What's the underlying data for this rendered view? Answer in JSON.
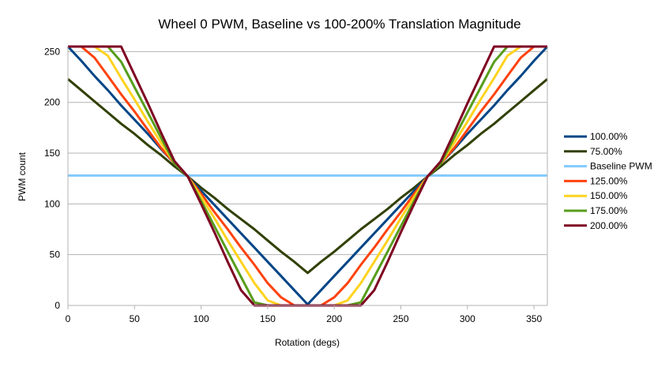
{
  "chart_data": {
    "type": "line",
    "title": "Wheel 0 PWM, Baseline vs 100-200% Translation Magnitude",
    "xlabel": "Rotation (degs)",
    "ylabel": "PWM count",
    "xlim": [
      0,
      360
    ],
    "ylim": [
      0,
      255
    ],
    "x_ticks": [
      0,
      50,
      100,
      150,
      200,
      250,
      300,
      350
    ],
    "y_ticks": [
      0,
      50,
      100,
      150,
      200,
      250
    ],
    "grid": "horizontal",
    "legend_position": "right",
    "x": [
      0,
      10,
      20,
      30,
      40,
      50,
      60,
      70,
      80,
      90,
      100,
      110,
      120,
      130,
      140,
      150,
      160,
      170,
      180,
      190,
      200,
      210,
      220,
      230,
      240,
      250,
      260,
      270,
      280,
      290,
      300,
      310,
      320,
      330,
      340,
      350,
      360
    ],
    "series": [
      {
        "name": "100.00%",
        "color": "#004586",
        "values": [
          255,
          241,
          226,
          212,
          197,
          183,
          169,
          154,
          140,
          127,
          113,
          99,
          85,
          71,
          57,
          43,
          29,
          15,
          1,
          15,
          29,
          43,
          57,
          71,
          85,
          99,
          113,
          127,
          140,
          154,
          169,
          183,
          197,
          212,
          226,
          241,
          255
        ]
      },
      {
        "name": "75.00%",
        "color": "#314004",
        "values": [
          223,
          212,
          201,
          190,
          179,
          169,
          158,
          148,
          137,
          127,
          116,
          106,
          95,
          85,
          75,
          64,
          53,
          43,
          32,
          43,
          53,
          64,
          75,
          85,
          95,
          106,
          116,
          127,
          137,
          148,
          158,
          169,
          179,
          190,
          201,
          212,
          223
        ]
      },
      {
        "name": "Baseline PWM",
        "color": "#83caff",
        "values": [
          128,
          128,
          128,
          128,
          128,
          128,
          128,
          128,
          128,
          128,
          128,
          128,
          128,
          128,
          128,
          128,
          128,
          128,
          128,
          128,
          128,
          128,
          128,
          128,
          128,
          128,
          128,
          128,
          128,
          128,
          128,
          128,
          128,
          128,
          128,
          128,
          128
        ]
      },
      {
        "name": "125.00%",
        "color": "#ff420e",
        "values": [
          255,
          255,
          244,
          226,
          208,
          191,
          173,
          155,
          140,
          127,
          110,
          92,
          75,
          57,
          40,
          22,
          8,
          0,
          0,
          0,
          8,
          22,
          40,
          57,
          75,
          92,
          110,
          127,
          140,
          155,
          173,
          191,
          208,
          226,
          244,
          255,
          255
        ]
      },
      {
        "name": "150.00%",
        "color": "#ffd320",
        "values": [
          255,
          255,
          255,
          246,
          224,
          203,
          181,
          160,
          140,
          127,
          107,
          86,
          64,
          43,
          22,
          5,
          0,
          0,
          0,
          0,
          0,
          5,
          22,
          43,
          64,
          86,
          107,
          127,
          140,
          160,
          181,
          203,
          224,
          246,
          255,
          255,
          255
        ]
      },
      {
        "name": "175.00%",
        "color": "#579d1c",
        "values": [
          255,
          255,
          255,
          255,
          240,
          215,
          190,
          165,
          140,
          127,
          103,
          78,
          53,
          28,
          3,
          0,
          0,
          0,
          0,
          0,
          0,
          0,
          3,
          28,
          53,
          78,
          103,
          127,
          140,
          165,
          190,
          215,
          240,
          255,
          255,
          255,
          255
        ]
      },
      {
        "name": "200.00%",
        "color": "#7e0021",
        "values": [
          255,
          255,
          255,
          255,
          255,
          227,
          199,
          170,
          142,
          127,
          100,
          72,
          43,
          15,
          0,
          0,
          0,
          0,
          0,
          0,
          0,
          0,
          0,
          15,
          43,
          72,
          100,
          127,
          142,
          170,
          199,
          227,
          255,
          255,
          255,
          255,
          255
        ]
      }
    ]
  }
}
